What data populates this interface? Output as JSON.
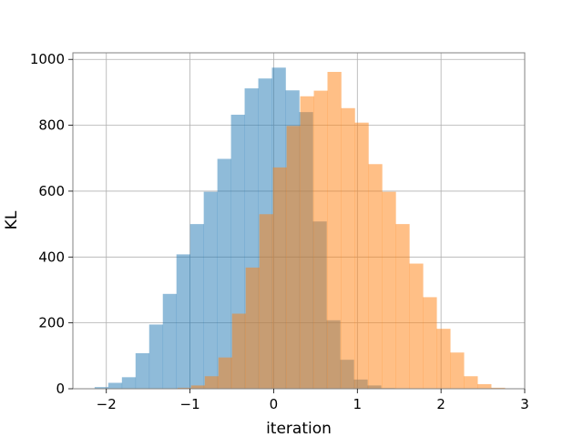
{
  "chart_data": {
    "type": "histogram",
    "title": "",
    "xlabel": "iteration",
    "ylabel": "KL",
    "xlim": [
      -2.4,
      3.0
    ],
    "ylim": [
      0,
      1020
    ],
    "xticks": [
      -2,
      -1,
      0,
      1,
      2,
      3
    ],
    "xtick_labels": [
      "−2",
      "−1",
      "0",
      "1",
      "2",
      "3"
    ],
    "yticks": [
      0,
      200,
      400,
      600,
      800,
      1000
    ],
    "ytick_labels": [
      "0",
      "200",
      "400",
      "600",
      "800",
      "1000"
    ],
    "grid": true,
    "legend": "none",
    "series": [
      {
        "color": "#1f77b4",
        "alpha": 0.5,
        "bin_start": -2.14,
        "bin_width": 0.163,
        "counts": [
          5,
          18,
          35,
          108,
          195,
          288,
          408,
          500,
          598,
          698,
          832,
          912,
          942,
          975,
          906,
          840,
          508,
          208,
          88,
          28,
          10,
          2
        ]
      },
      {
        "color": "#ff7f0e",
        "alpha": 0.5,
        "bin_start": -1.15,
        "bin_width": 0.163,
        "counts": [
          3,
          10,
          38,
          95,
          228,
          368,
          530,
          672,
          798,
          888,
          905,
          962,
          852,
          808,
          682,
          598,
          500,
          380,
          278,
          182,
          110,
          38,
          14,
          3
        ]
      }
    ]
  }
}
